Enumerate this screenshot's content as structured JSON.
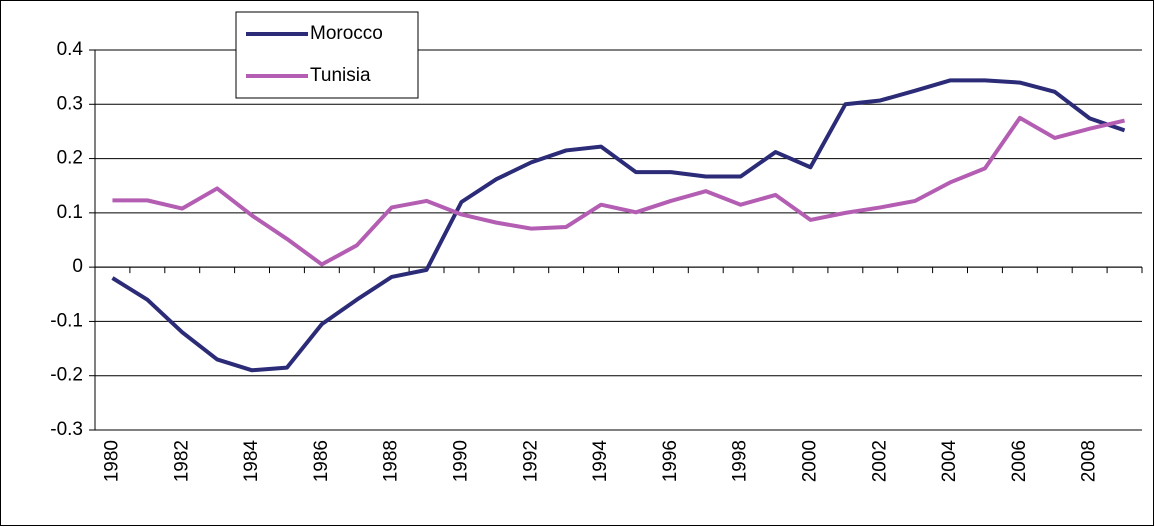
{
  "chart_data": {
    "type": "line",
    "categories": [
      "1980",
      null,
      "1982",
      null,
      "1984",
      null,
      "1986",
      null,
      "1988",
      null,
      "1990",
      null,
      "1992",
      null,
      "1994",
      null,
      "1996",
      null,
      "1998",
      null,
      "2000",
      null,
      "2002",
      null,
      "2004",
      null,
      "2006",
      null,
      "2008",
      null
    ],
    "series": [
      {
        "name": "Morocco",
        "color": "#2b2b78",
        "values": [
          -0.02,
          -0.06,
          -0.12,
          -0.17,
          -0.19,
          -0.185,
          -0.105,
          -0.06,
          -0.018,
          -0.005,
          0.12,
          0.162,
          0.193,
          0.215,
          0.222,
          0.175,
          0.175,
          0.167,
          0.167,
          0.212,
          0.184,
          0.3,
          0.307,
          0.325,
          0.344,
          0.344,
          0.34,
          0.323,
          0.274,
          0.252
        ]
      },
      {
        "name": "Tunisia",
        "color": "#b45eb3",
        "values": [
          0.123,
          0.123,
          0.108,
          0.145,
          0.095,
          0.052,
          0.005,
          0.04,
          0.11,
          0.122,
          0.097,
          0.082,
          0.071,
          0.074,
          0.115,
          0.101,
          0.122,
          0.14,
          0.115,
          0.133,
          0.087,
          0.1,
          0.11,
          0.122,
          0.156,
          0.182,
          0.275,
          0.238,
          0.255,
          0.27
        ]
      }
    ],
    "ylim": [
      -0.3,
      0.4
    ],
    "yticks": [
      -0.3,
      -0.2,
      -0.1,
      0,
      0.1,
      0.2,
      0.3,
      0.4
    ],
    "grid": true,
    "legend": "top-left"
  }
}
